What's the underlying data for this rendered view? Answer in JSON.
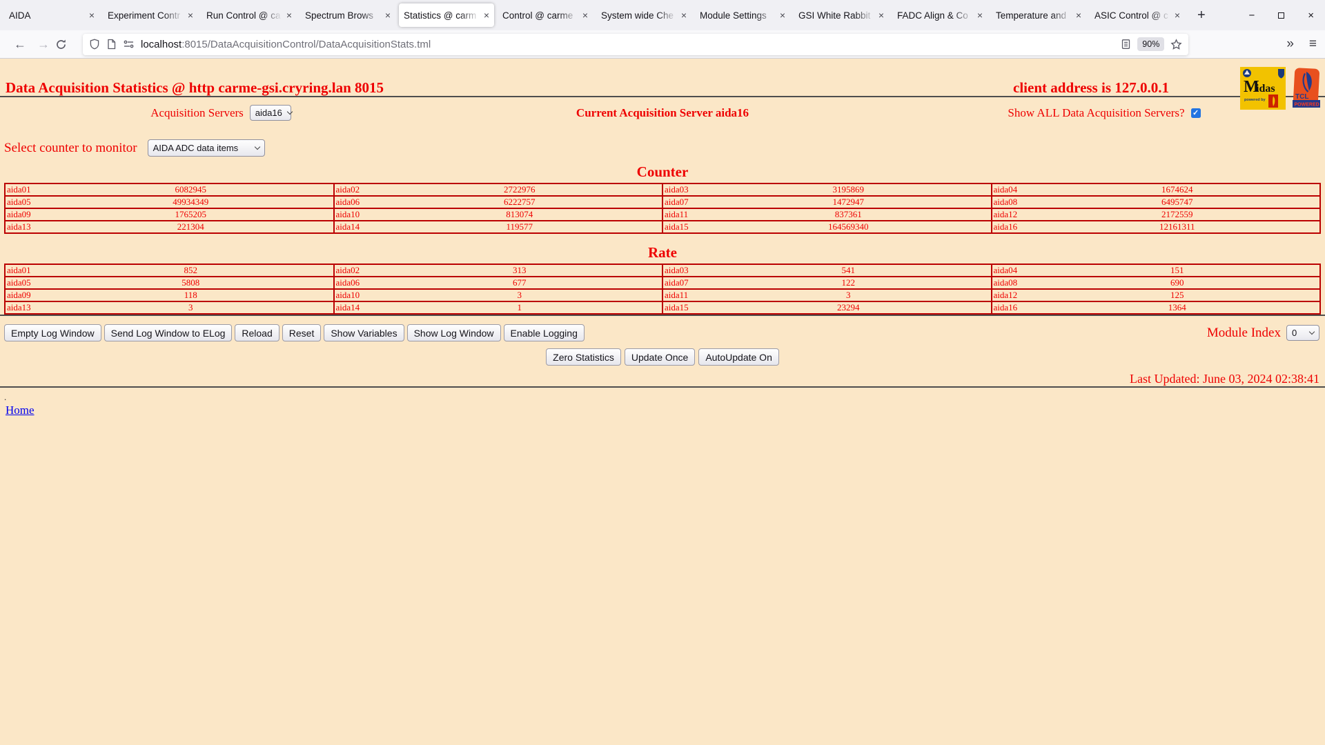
{
  "browser": {
    "tabs": [
      {
        "title": "AIDA",
        "active": false
      },
      {
        "title": "Experiment Contr",
        "active": false
      },
      {
        "title": "Run Control @ ca",
        "active": false
      },
      {
        "title": "Spectrum Brows",
        "active": false
      },
      {
        "title": "Statistics @ carm",
        "active": true
      },
      {
        "title": "Control @ carme",
        "active": false
      },
      {
        "title": "System wide Che",
        "active": false
      },
      {
        "title": "Module Settings",
        "active": false
      },
      {
        "title": "GSI White Rabbit",
        "active": false
      },
      {
        "title": "FADC Align & Co",
        "active": false
      },
      {
        "title": "Temperature and",
        "active": false
      },
      {
        "title": "ASIC Control @ c",
        "active": false
      }
    ],
    "tab_close_glyph": "×",
    "new_tab_label": "+",
    "nav_back_glyph": "←",
    "nav_forward_glyph": "→",
    "url_host": "localhost",
    "url_path": ":8015/DataAcquisitionControl/DataAcquisitionStats.tml",
    "zoom_level": "90%",
    "overflow_glyph": "»",
    "menu_glyph": "≡",
    "window_minimize_glyph": "−",
    "window_close_glyph": "×"
  },
  "page": {
    "title": "Data Acquisition Statistics @ http carme-gsi.cryring.lan 8015",
    "client_address": "client address is 127.0.0.1",
    "acquisition_servers_label": "Acquisition Servers",
    "acquisition_server_value": "aida16",
    "current_server_text": "Current Acquisition Server aida16",
    "show_all_label": "Show ALL Data Acquisition Servers?",
    "show_all_checked": true,
    "check_glyph": "✓",
    "counter_select_label": "Select counter to monitor",
    "counter_select_value": "AIDA ADC data items",
    "counter_heading": "Counter",
    "rate_heading": "Rate",
    "counter_rows": [
      [
        {
          "name": "aida01",
          "value": "6082945"
        },
        {
          "name": "aida02",
          "value": "2722976"
        },
        {
          "name": "aida03",
          "value": "3195869"
        },
        {
          "name": "aida04",
          "value": "1674624"
        }
      ],
      [
        {
          "name": "aida05",
          "value": "49934349"
        },
        {
          "name": "aida06",
          "value": "6222757"
        },
        {
          "name": "aida07",
          "value": "1472947"
        },
        {
          "name": "aida08",
          "value": "6495747"
        }
      ],
      [
        {
          "name": "aida09",
          "value": "1765205"
        },
        {
          "name": "aida10",
          "value": "813074"
        },
        {
          "name": "aida11",
          "value": "837361"
        },
        {
          "name": "aida12",
          "value": "2172559"
        }
      ],
      [
        {
          "name": "aida13",
          "value": "221304"
        },
        {
          "name": "aida14",
          "value": "119577"
        },
        {
          "name": "aida15",
          "value": "164569340"
        },
        {
          "name": "aida16",
          "value": "12161311"
        }
      ]
    ],
    "rate_rows": [
      [
        {
          "name": "aida01",
          "value": "852"
        },
        {
          "name": "aida02",
          "value": "313"
        },
        {
          "name": "aida03",
          "value": "541"
        },
        {
          "name": "aida04",
          "value": "151"
        }
      ],
      [
        {
          "name": "aida05",
          "value": "5808"
        },
        {
          "name": "aida06",
          "value": "677"
        },
        {
          "name": "aida07",
          "value": "122"
        },
        {
          "name": "aida08",
          "value": "690"
        }
      ],
      [
        {
          "name": "aida09",
          "value": "118"
        },
        {
          "name": "aida10",
          "value": "3"
        },
        {
          "name": "aida11",
          "value": "3"
        },
        {
          "name": "aida12",
          "value": "125"
        }
      ],
      [
        {
          "name": "aida13",
          "value": "3"
        },
        {
          "name": "aida14",
          "value": "1"
        },
        {
          "name": "aida15",
          "value": "23294"
        },
        {
          "name": "aida16",
          "value": "1364"
        }
      ]
    ],
    "log_buttons": [
      "Empty Log Window",
      "Send Log Window to ELog",
      "Reload",
      "Reset",
      "Show Variables",
      "Show Log Window",
      "Enable Logging"
    ],
    "module_index_label": "Module Index",
    "module_index_value": "0",
    "update_buttons": [
      "Zero Statistics",
      "Update Once",
      "AutoUpdate On"
    ],
    "last_updated": "Last Updated: June 03, 2024 02:38:41",
    "footer_dot": ".",
    "home_link": "Home",
    "logos": {
      "midas_text_m": "M",
      "midas_text_rest": "idas",
      "midas_powered": "powered by",
      "tcl_text": "TCL",
      "tcl_powered": "POWERED"
    }
  },
  "colors": {
    "page_background": "#fbe7c7",
    "text_red": "#ee0000",
    "table_border_red": "#bb0000",
    "link_blue": "#0000ee",
    "checkbox_blue": "#2374e1"
  }
}
